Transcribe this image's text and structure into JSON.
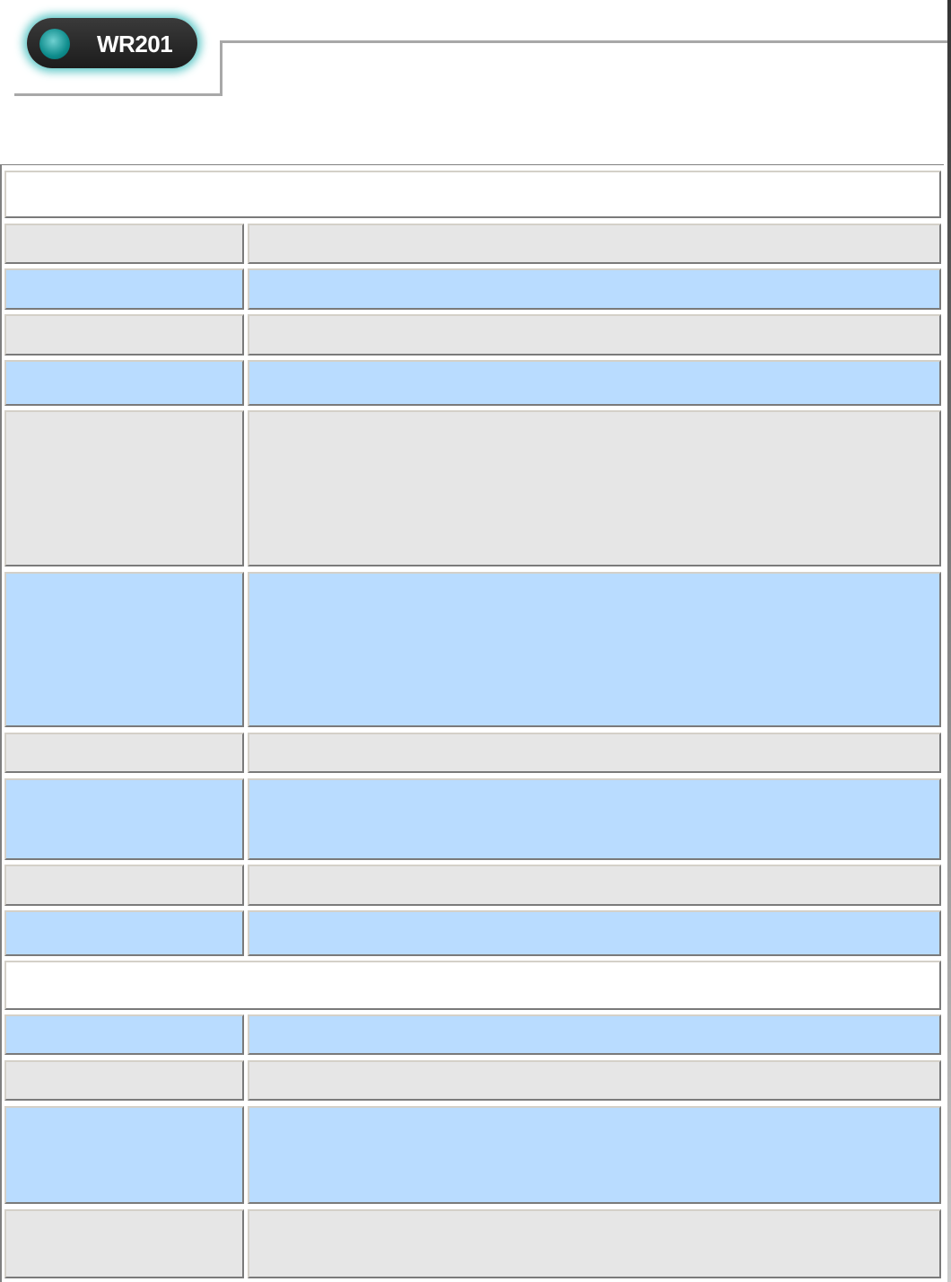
{
  "logo": {
    "text": "WR201"
  },
  "colors": {
    "gray_row": "#e6e6e6",
    "blue_row": "#b9dcff",
    "header_row": "#ffffff",
    "accent": "#1a9a9a"
  },
  "table": {
    "sections": [
      {
        "rows": [
          "gray",
          "blue",
          "gray",
          "blue",
          "gray",
          "blue",
          "gray",
          "blue",
          "gray",
          "blue"
        ]
      },
      {
        "rows": [
          "blue",
          "gray",
          "blue",
          "gray"
        ]
      }
    ]
  }
}
